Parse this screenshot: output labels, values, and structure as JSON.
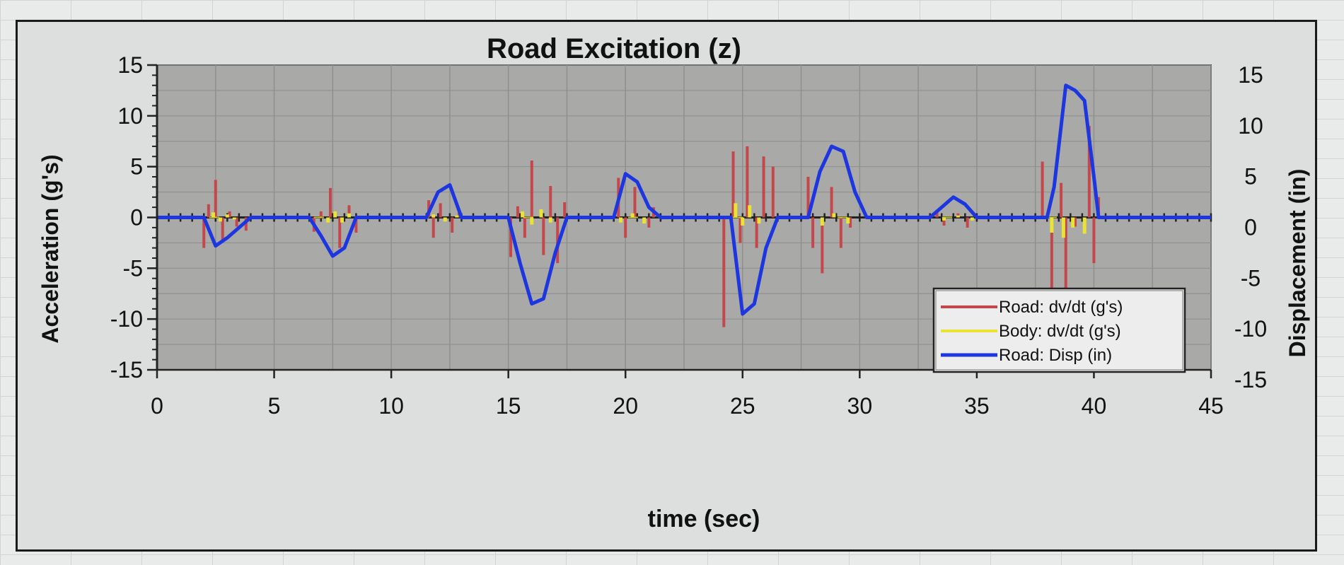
{
  "chart_data": {
    "type": "line",
    "title": "Road Excitation (z)",
    "xlabel": "time (sec)",
    "ylabel": "Acceleration (g's)",
    "y2label": "Displacement (in)",
    "xlim": [
      0,
      45
    ],
    "ylim": [
      -15,
      15
    ],
    "y2lim": [
      -15,
      15
    ],
    "xticks": [
      0,
      5,
      10,
      15,
      20,
      25,
      30,
      35,
      40,
      45
    ],
    "yticks": [
      15,
      10,
      5,
      0,
      -5,
      -10,
      -15
    ],
    "y2ticks": [
      15,
      10,
      5,
      0,
      -5,
      -10,
      -15
    ],
    "grid": true,
    "legend_position": "bottom-right",
    "series": [
      {
        "name": "Road: dv/dt (g's)",
        "axis": "left",
        "color": "#c4474b",
        "style": "spikes",
        "x": [
          2.0,
          2.2,
          2.5,
          2.8,
          3.1,
          3.4,
          3.8,
          6.7,
          7.0,
          7.4,
          7.8,
          8.2,
          8.5,
          11.6,
          11.8,
          12.1,
          12.6,
          12.9,
          15.1,
          15.4,
          15.7,
          16.0,
          16.5,
          16.8,
          17.1,
          17.4,
          19.7,
          20.0,
          20.4,
          21.0,
          21.2,
          24.2,
          24.6,
          24.9,
          25.2,
          25.6,
          25.9,
          26.3,
          27.8,
          28.0,
          28.4,
          28.8,
          29.2,
          29.6,
          33.3,
          33.6,
          34.2,
          34.6,
          37.8,
          38.2,
          38.6,
          38.8,
          39.2,
          39.8,
          40.0,
          40.2
        ],
        "y": [
          -3,
          1.3,
          3.7,
          -2.3,
          0.6,
          -0.9,
          -1.3,
          -1.4,
          0.6,
          2.9,
          -3.0,
          1.2,
          -1.5,
          1.7,
          -2.0,
          1.4,
          -1.5,
          0.5,
          -3.9,
          1.1,
          -2.0,
          5.6,
          -3.7,
          3.1,
          -4.5,
          1.5,
          3.9,
          -2.0,
          3.0,
          -1.0,
          1.0,
          -10.8,
          6.5,
          -2.5,
          7.0,
          -3.0,
          6.0,
          5.0,
          4.0,
          -3.0,
          -5.5,
          3.0,
          -3.0,
          -1.0,
          0.6,
          -0.8,
          0.4,
          -1.0,
          5.5,
          -7.0,
          3.4,
          -7.0,
          -0.9,
          9.0,
          -4.5,
          2.0
        ]
      },
      {
        "name": "Body: dv/dt (g's)",
        "axis": "left",
        "color": "#e8e335",
        "style": "spikes",
        "x": [
          2.4,
          2.7,
          3.0,
          3.3,
          7.3,
          7.6,
          7.9,
          8.2,
          11.8,
          12.3,
          12.8,
          15.6,
          16.0,
          16.4,
          16.8,
          19.8,
          20.3,
          20.8,
          24.7,
          25.0,
          25.3,
          25.7,
          28.4,
          28.9,
          29.5,
          33.6,
          34.2,
          34.8,
          38.2,
          38.7,
          39.1,
          39.6
        ],
        "y": [
          0.5,
          -0.4,
          0.3,
          -0.2,
          -0.5,
          0.6,
          -0.5,
          0.4,
          0.3,
          -0.4,
          0.2,
          0.6,
          -0.7,
          0.8,
          -0.5,
          -0.5,
          0.4,
          -0.6,
          1.4,
          -0.8,
          1.2,
          -0.6,
          -0.8,
          0.4,
          -0.6,
          -0.3,
          0.2,
          -0.3,
          -1.5,
          -2.0,
          -1.0,
          -1.6
        ]
      },
      {
        "name": "Road: Disp (in)",
        "axis": "right",
        "color": "#1d36e0",
        "style": "line",
        "x": [
          0,
          2.0,
          2.5,
          3.0,
          3.5,
          4.0,
          6.5,
          7.0,
          7.5,
          8.0,
          8.5,
          11.5,
          12.0,
          12.5,
          13.0,
          15.0,
          15.5,
          16.0,
          16.5,
          17.0,
          17.5,
          19.5,
          20.0,
          20.5,
          21.0,
          21.5,
          24.5,
          25.0,
          25.5,
          26.0,
          26.5,
          27.8,
          28.3,
          28.8,
          29.3,
          29.8,
          30.3,
          33.0,
          33.5,
          34.0,
          34.5,
          35.0,
          38.0,
          38.3,
          38.8,
          39.2,
          39.6,
          40.0,
          40.2,
          45.0
        ],
        "y": [
          0,
          0,
          -2.8,
          -2.0,
          -1.0,
          0,
          0,
          -1.8,
          -3.8,
          -3.0,
          0,
          0,
          2.5,
          3.2,
          0,
          0,
          -4.5,
          -8.5,
          -8.0,
          -3.5,
          0,
          0,
          4.3,
          3.5,
          1.0,
          0,
          0,
          -9.5,
          -8.5,
          -3.0,
          0,
          0,
          4.5,
          7.0,
          6.5,
          2.5,
          0,
          0,
          1.0,
          2.0,
          1.3,
          0,
          0,
          3.0,
          13.0,
          12.5,
          11.5,
          4.0,
          0,
          0
        ]
      }
    ]
  }
}
